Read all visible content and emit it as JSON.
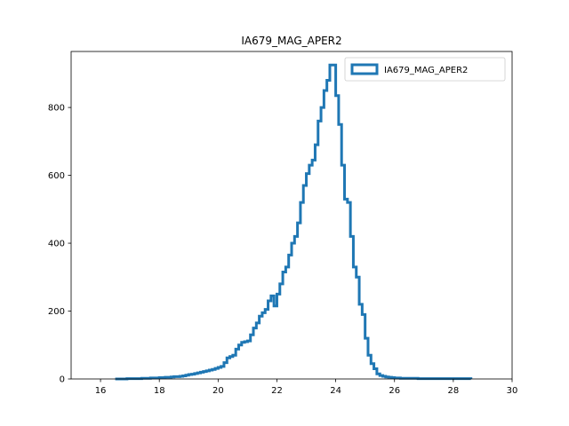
{
  "chart_data": {
    "type": "histogram",
    "title": "IA679_MAG_APER2",
    "xlabel": "",
    "ylabel": "",
    "xlim": [
      15,
      30
    ],
    "ylim": [
      0,
      965
    ],
    "xticks": [
      16,
      18,
      20,
      22,
      24,
      26,
      28,
      30
    ],
    "yticks": [
      0,
      200,
      400,
      600,
      800
    ],
    "legend_position": "top-right",
    "grid": false,
    "series": [
      {
        "name": "IA679_MAG_APER2",
        "color": "#1f77b4",
        "bin_width": 0.1,
        "bin_start": 16.5,
        "counts": [
          0,
          0,
          0,
          0,
          1,
          1,
          1,
          1,
          1,
          2,
          2,
          2,
          3,
          3,
          3,
          4,
          4,
          5,
          5,
          6,
          7,
          7,
          8,
          9,
          11,
          13,
          14,
          16,
          18,
          20,
          22,
          24,
          26,
          28,
          31,
          34,
          37,
          48,
          62,
          66,
          70,
          88,
          100,
          108,
          110,
          112,
          130,
          150,
          165,
          185,
          195,
          205,
          230,
          245,
          215,
          250,
          280,
          315,
          330,
          365,
          400,
          420,
          460,
          520,
          570,
          605,
          630,
          645,
          690,
          760,
          800,
          850,
          880,
          925,
          925,
          835,
          750,
          630,
          530,
          520,
          420,
          330,
          300,
          220,
          190,
          120,
          70,
          45,
          30,
          15,
          10,
          8,
          6,
          5,
          4,
          3,
          3,
          2,
          2,
          2,
          2,
          2,
          2,
          1,
          1,
          1,
          1,
          1,
          1,
          1,
          1,
          1,
          1,
          1,
          1,
          1,
          1,
          1,
          1,
          1,
          1
        ]
      }
    ]
  }
}
